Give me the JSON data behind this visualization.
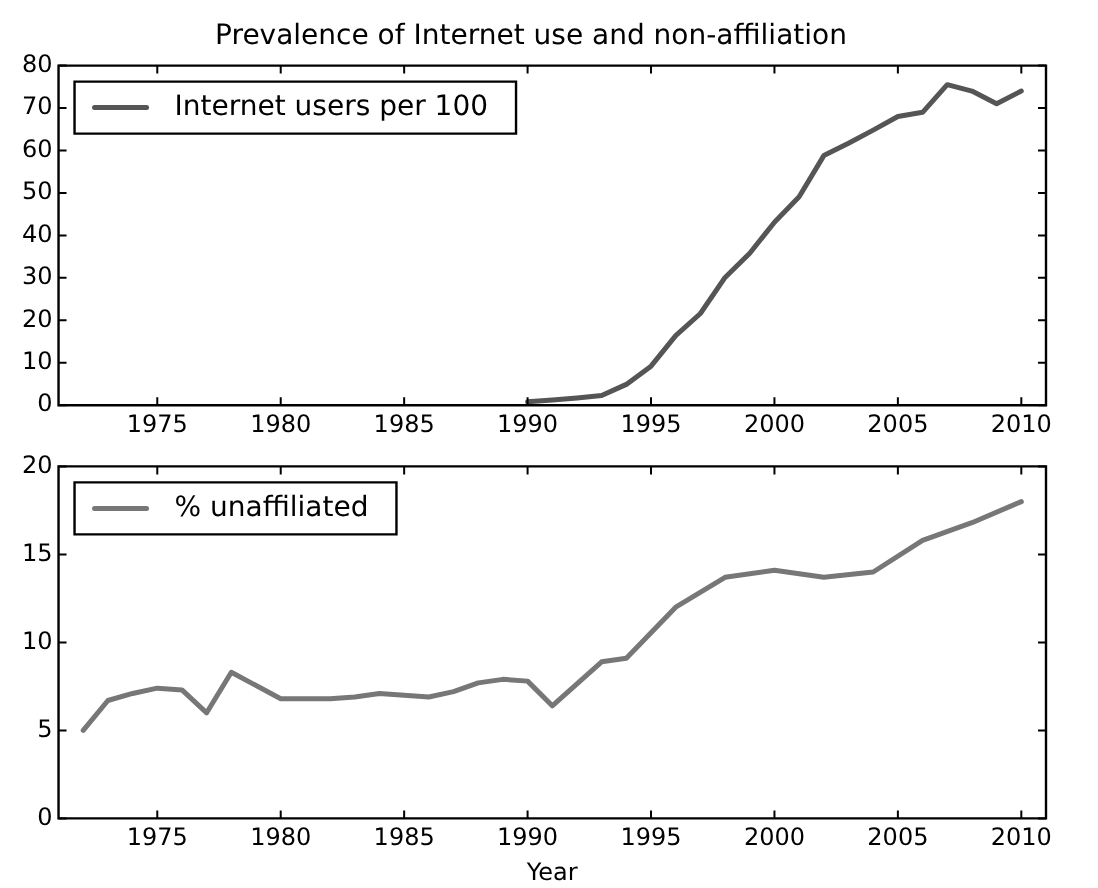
{
  "chart_data": [
    {
      "type": "line",
      "title": "Prevalence of Internet use and non-affiliation",
      "x": [
        1990,
        1991,
        1992,
        1993,
        1994,
        1995,
        1996,
        1997,
        1998,
        1999,
        2000,
        2001,
        2002,
        2003,
        2004,
        2005,
        2006,
        2007,
        2008,
        2009,
        2010
      ],
      "series": [
        {
          "name": "Internet users per 100",
          "color": "#555555",
          "values": [
            0.8,
            1.2,
            1.7,
            2.3,
            4.9,
            9.2,
            16.4,
            21.6,
            30.1,
            35.8,
            43.1,
            49.1,
            58.8,
            61.7,
            64.8,
            68.0,
            69.0,
            75.5,
            74.0,
            71.0,
            74.0
          ]
        }
      ],
      "xlim": [
        1971,
        2011
      ],
      "xticks": [
        1975,
        1980,
        1985,
        1990,
        1995,
        2000,
        2005,
        2010
      ],
      "ylim": [
        0,
        80
      ],
      "yticks": [
        0,
        10,
        20,
        30,
        40,
        50,
        60,
        70,
        80
      ],
      "legend": "top left",
      "marker": "none",
      "line_style": "solid"
    },
    {
      "type": "line",
      "xlabel": "Year",
      "x": [
        1972,
        1973,
        1974,
        1975,
        1976,
        1977,
        1978,
        1980,
        1982,
        1983,
        1984,
        1985,
        1986,
        1987,
        1988,
        1989,
        1990,
        1991,
        1993,
        1994,
        1996,
        1998,
        2000,
        2002,
        2004,
        2006,
        2008,
        2010
      ],
      "series": [
        {
          "name": "% unaffiliated",
          "color": "#777777",
          "values": [
            5.0,
            6.7,
            7.1,
            7.4,
            7.3,
            6.0,
            8.3,
            6.8,
            6.8,
            6.9,
            7.1,
            7.0,
            6.9,
            7.2,
            7.7,
            7.9,
            7.8,
            6.4,
            8.9,
            9.1,
            12.0,
            13.7,
            14.1,
            13.7,
            14.0,
            15.8,
            16.8,
            18.0
          ]
        }
      ],
      "xlim": [
        1971,
        2011
      ],
      "xticks": [
        1975,
        1980,
        1985,
        1990,
        1995,
        2000,
        2005,
        2010
      ],
      "ylim": [
        0,
        20
      ],
      "yticks": [
        0,
        5,
        10,
        15,
        20
      ],
      "legend": "top left",
      "marker": "none",
      "line_style": "solid"
    }
  ]
}
